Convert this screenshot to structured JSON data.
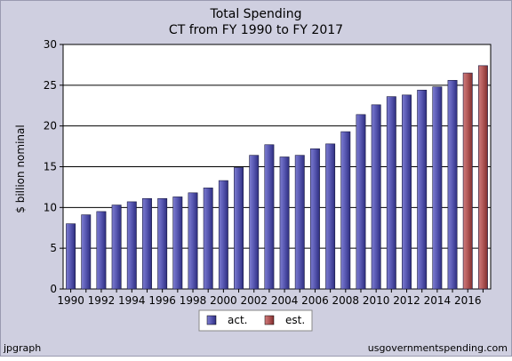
{
  "chart_data": {
    "type": "bar",
    "title": "Total Spending",
    "subtitle": "CT from FY 1990 to FY 2017",
    "xlabel": "",
    "ylabel": "$ billion nominal",
    "ylim": [
      0,
      30
    ],
    "yticks": [
      0,
      5,
      10,
      15,
      20,
      25,
      30
    ],
    "categories": [
      "1990",
      "1991",
      "1992",
      "1993",
      "1994",
      "1995",
      "1996",
      "1997",
      "1998",
      "1999",
      "2000",
      "2001",
      "2002",
      "2003",
      "2004",
      "2005",
      "2006",
      "2007",
      "2008",
      "2009",
      "2010",
      "2011",
      "2012",
      "2013",
      "2014",
      "2015",
      "2016",
      "2017"
    ],
    "xtick_labels": [
      "1990",
      "1992",
      "1994",
      "1996",
      "1998",
      "2000",
      "2002",
      "2004",
      "2006",
      "2008",
      "2010",
      "2012",
      "2014",
      "2016"
    ],
    "series": [
      {
        "name": "act.",
        "color": "#5252a8",
        "values": [
          8.0,
          9.1,
          9.5,
          10.3,
          10.7,
          11.1,
          11.1,
          11.3,
          11.8,
          12.4,
          13.3,
          14.9,
          16.4,
          17.7,
          16.2,
          16.4,
          17.2,
          17.8,
          19.3,
          21.4,
          22.6,
          23.6,
          23.8,
          24.4,
          24.8,
          25.6,
          null,
          null
        ]
      },
      {
        "name": "est.",
        "color": "#a85252",
        "values": [
          null,
          null,
          null,
          null,
          null,
          null,
          null,
          null,
          null,
          null,
          null,
          null,
          null,
          null,
          null,
          null,
          null,
          null,
          null,
          null,
          null,
          null,
          null,
          null,
          null,
          null,
          26.5,
          27.4
        ]
      }
    ],
    "grid": "horizontal",
    "legend_position": "bottom"
  },
  "footer": {
    "left": "jpgraph",
    "right": "usgovernmentspending.com"
  },
  "colors": {
    "frame_bg": "#cfcfe0",
    "plot_bg": "#ffffff",
    "grid": "#000000"
  }
}
